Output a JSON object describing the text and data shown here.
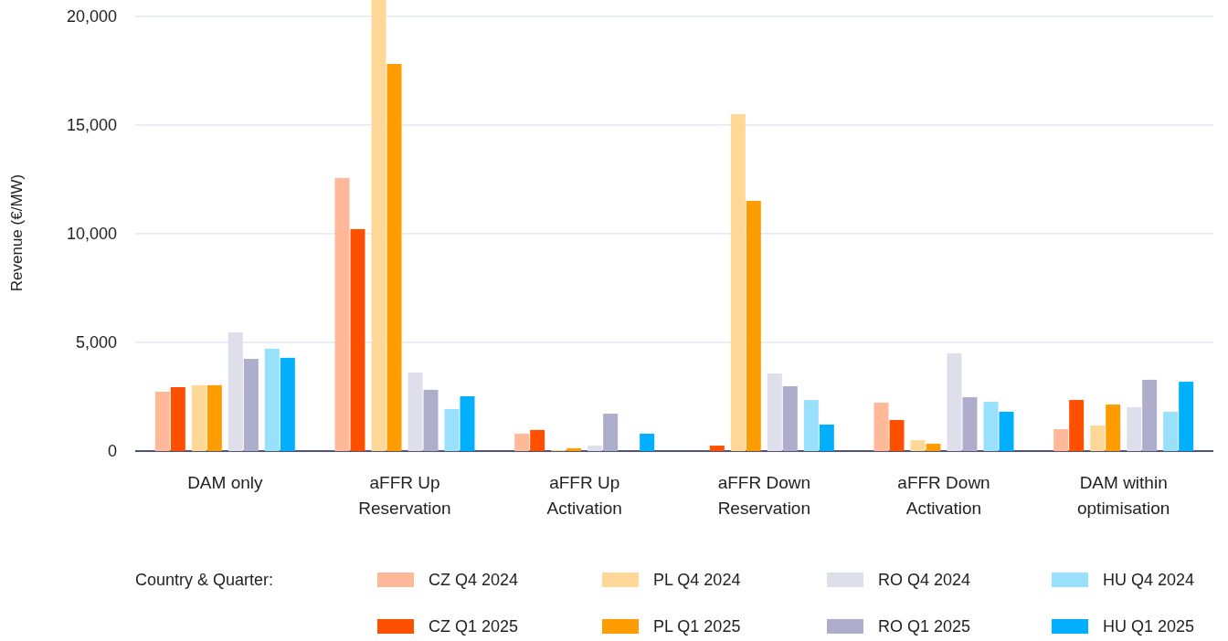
{
  "chart_data": {
    "type": "bar",
    "ylabel": "Revenue (€/MW)",
    "legend_title": "Country & Quarter:",
    "categories": [
      "DAM only",
      "aFFR Up Reservation",
      "aFFR Up Activation",
      "aFFR Down Reservation",
      "aFFR Down Activation",
      "DAM within optimisation"
    ],
    "series": [
      {
        "name": "CZ Q4 2024",
        "color": "#ffb999",
        "values": [
          2730,
          12560,
          800,
          0,
          2230,
          1010
        ]
      },
      {
        "name": "CZ Q1 2025",
        "color": "#ff5000",
        "values": [
          2940,
          10210,
          970,
          250,
          1430,
          2350
        ]
      },
      {
        "name": "PL Q4 2024",
        "color": "#ffd796",
        "values": [
          3030,
          20750,
          40,
          15500,
          500,
          1180
        ]
      },
      {
        "name": "PL Q1 2025",
        "color": "#ff9d00",
        "values": [
          3030,
          17810,
          130,
          11510,
          340,
          2140
        ]
      },
      {
        "name": "RO Q4 2024",
        "color": "#dfdfeb",
        "values": [
          5460,
          3610,
          250,
          3570,
          4500,
          2020
        ]
      },
      {
        "name": "RO Q1 2025",
        "color": "#aeadcb",
        "values": [
          4240,
          2820,
          1720,
          2980,
          2480,
          3280
        ]
      },
      {
        "name": "HU Q4 2024",
        "color": "#99e0fc",
        "values": [
          4710,
          1930,
          0,
          2350,
          2270,
          1810
        ]
      },
      {
        "name": "HU Q1 2025",
        "color": "#00b0ff",
        "values": [
          4290,
          2520,
          800,
          1220,
          1810,
          3190
        ]
      }
    ],
    "ylim": [
      0,
      20750
    ],
    "yticks": [
      {
        "value": 0,
        "label": "0"
      },
      {
        "value": 5000,
        "label": "5,000"
      },
      {
        "value": 10000,
        "label": "10,000"
      },
      {
        "value": 15000,
        "label": "15,000"
      },
      {
        "value": 20000,
        "label": "20,000"
      }
    ],
    "grid": "y",
    "legend": "bottom"
  }
}
